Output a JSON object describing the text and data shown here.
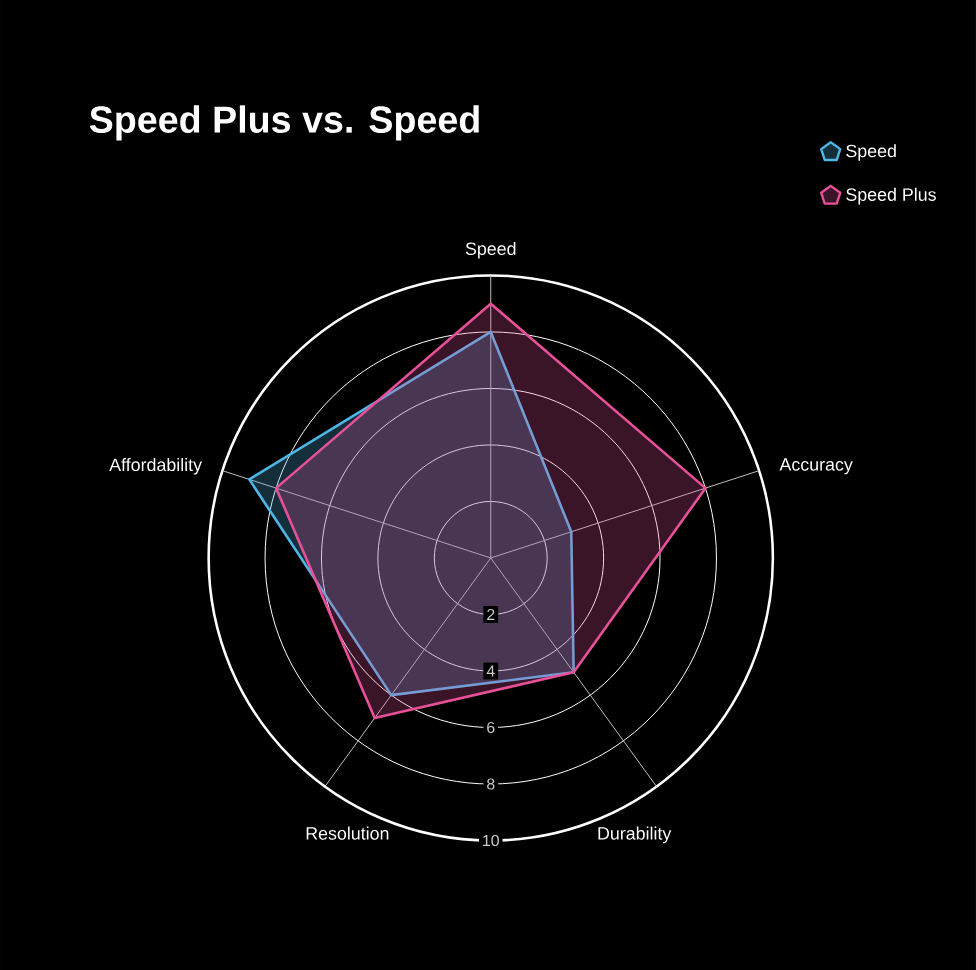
{
  "chart_data": {
    "type": "radar",
    "title": "Speed Plus vs. Speed",
    "categories": [
      "Speed",
      "Accuracy",
      "Durability",
      "Resolution",
      "Affordability"
    ],
    "series": [
      {
        "name": "Speed",
        "color": "#4fb6e8",
        "values": [
          8,
          3,
          5,
          6,
          9
        ]
      },
      {
        "name": "Speed Plus",
        "color": "#e8509a",
        "values": [
          9,
          8,
          5,
          7,
          8
        ]
      }
    ],
    "ylim": [
      0,
      10
    ],
    "yticks": [
      2,
      4,
      6,
      8,
      10
    ],
    "grid": true,
    "legend": "top right"
  }
}
